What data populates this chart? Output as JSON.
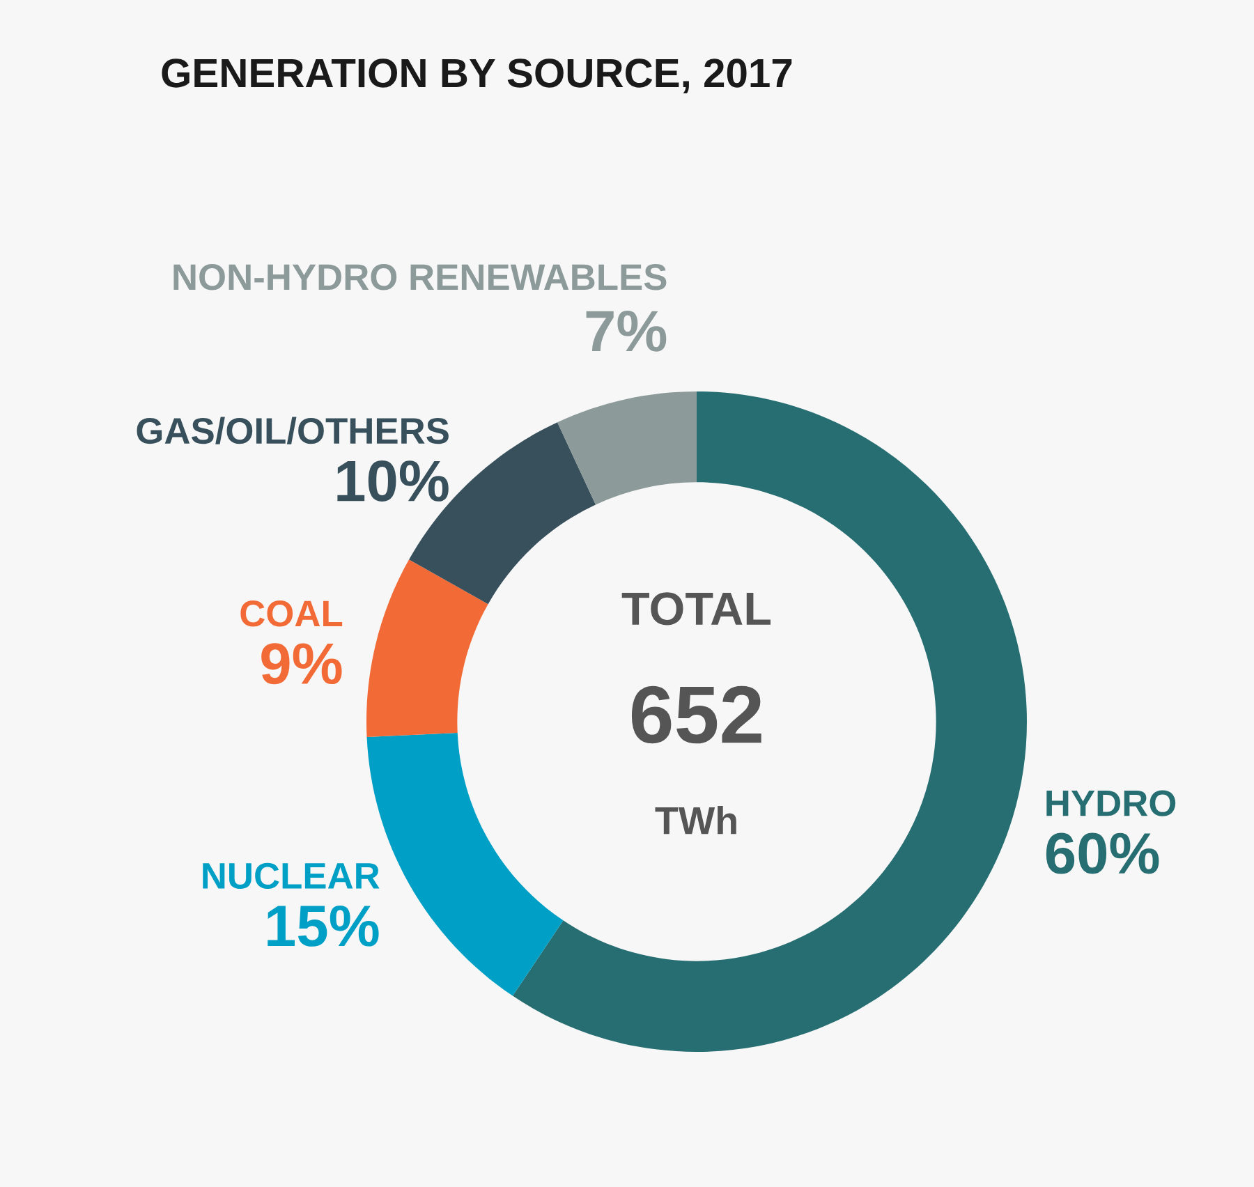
{
  "chart_data": {
    "type": "donut",
    "title": "GENERATION BY SOURCE, 2017",
    "categories": [
      "HYDRO",
      "NUCLEAR",
      "COAL",
      "GAS/OIL/OTHERS",
      "NON-HYDRO RENEWABLES"
    ],
    "values": [
      60,
      15,
      9,
      10,
      7
    ],
    "value_labels": [
      "60%",
      "15%",
      "9%",
      "10%",
      "7%"
    ],
    "colors": [
      "#266e72",
      "#00a0c6",
      "#f26a36",
      "#37505c",
      "#8c9a99"
    ],
    "annotations": [
      "TOTAL",
      "652",
      "TWh"
    ]
  }
}
